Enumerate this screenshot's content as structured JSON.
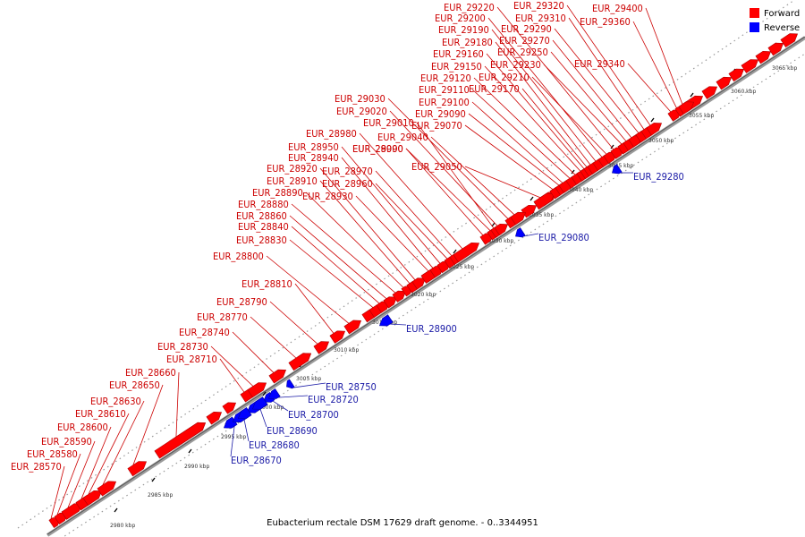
{
  "caption": "Eubacterium rectale DSM 17629 draft genome. - 0..3344951",
  "legend": [
    {
      "label": "Forward",
      "color": "#ff0000"
    },
    {
      "label": "Reverse",
      "color": "#0000ff"
    }
  ],
  "colors": {
    "forward": "#ff0000",
    "reverse": "#0000ff",
    "label_forward": "#cc0000",
    "label_reverse": "#1a1aa6",
    "axis": "#808080"
  },
  "ticks": [
    "2980 kbp",
    "2985 kbp",
    "2990 kbp",
    "2995 kbp",
    "3000 kbp",
    "3005 kbp",
    "3010 kbp",
    "3015 kbp",
    "3020 kbp",
    "3025 kbp",
    "3030 kbp",
    "3035 kbp",
    "3040 kbp",
    "3045 kbp",
    "3050 kbp",
    "3055 kbp",
    "3060 kbp",
    "3065 kbp"
  ],
  "forward_genes": [
    "EUR_28570",
    "EUR_28580",
    "EUR_28590",
    "EUR_28600",
    "EUR_28610",
    "EUR_28630",
    "EUR_28650",
    "EUR_28660",
    "EUR_28710",
    "EUR_28730",
    "EUR_28740",
    "EUR_28770",
    "EUR_28790",
    "EUR_28810",
    "EUR_28800",
    "EUR_28830",
    "EUR_28840",
    "EUR_28860",
    "EUR_28880",
    "EUR_28890",
    "EUR_28910",
    "EUR_28920",
    "EUR_28930",
    "EUR_28940",
    "EUR_28950",
    "EUR_28960",
    "EUR_28970",
    "EUR_28980",
    "EUR_28990",
    "EUR_29000",
    "EUR_29010",
    "EUR_29020",
    "EUR_29030",
    "EUR_29040",
    "EUR_29050",
    "EUR_29070",
    "EUR_29090",
    "EUR_29100",
    "EUR_29110",
    "EUR_29120",
    "EUR_29150",
    "EUR_29160",
    "EUR_29170",
    "EUR_29180",
    "EUR_29190",
    "EUR_29200",
    "EUR_29210",
    "EUR_29220",
    "EUR_29230",
    "EUR_29250",
    "EUR_29270",
    "EUR_29290",
    "EUR_29310",
    "EUR_29320",
    "EUR_29340",
    "EUR_29360",
    "EUR_29400"
  ],
  "reverse_genes": [
    "EUR_28670",
    "EUR_28680",
    "EUR_28690",
    "EUR_28700",
    "EUR_28720",
    "EUR_28750",
    "EUR_28900",
    "EUR_29080",
    "EUR_29280"
  ]
}
